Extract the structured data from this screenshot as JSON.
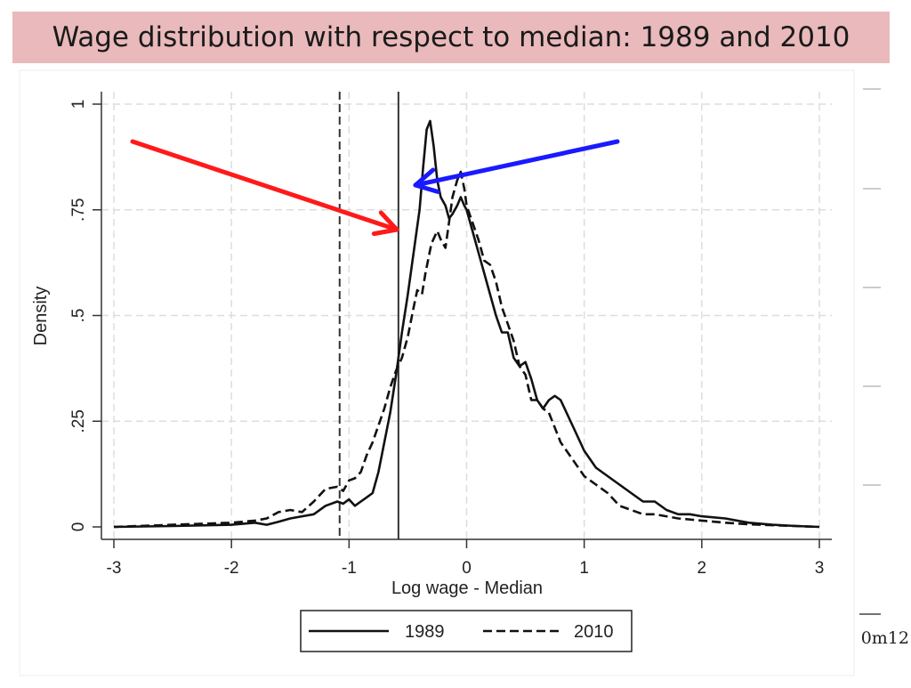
{
  "slide": {
    "title": "Wage distribution with respect to median: 1989 and 2010",
    "edge_fragment": "0m12"
  },
  "colors": {
    "title_background": "#e9b9bb",
    "red_arrow": "#ff1a1a",
    "blue_arrow": "#1a1aff",
    "line": "#111111",
    "grid": "#dddddd"
  },
  "chart_data": {
    "type": "line",
    "xlabel": "Log wage - Median",
    "ylabel": "Density",
    "xlim": [
      -3,
      3
    ],
    "ylim": [
      0,
      1
    ],
    "x_ticks": [
      -3,
      -2,
      -1,
      0,
      1,
      2,
      3
    ],
    "x_tick_labels": [
      "-3",
      "-2",
      "-1",
      "0",
      "1",
      "2",
      "3"
    ],
    "y_ticks": [
      0,
      0.25,
      0.5,
      0.75,
      1
    ],
    "y_tick_labels": [
      "0",
      ".25",
      ".5",
      ".75",
      "1"
    ],
    "grid": true,
    "legend_position": "bottom",
    "series": [
      {
        "name": "1989",
        "style": "solid",
        "x": [
          -3,
          -2.5,
          -2.0,
          -1.8,
          -1.7,
          -1.6,
          -1.5,
          -1.4,
          -1.3,
          -1.2,
          -1.1,
          -1.05,
          -1.0,
          -0.95,
          -0.9,
          -0.85,
          -0.8,
          -0.75,
          -0.7,
          -0.65,
          -0.6,
          -0.55,
          -0.5,
          -0.45,
          -0.4,
          -0.37,
          -0.34,
          -0.31,
          -0.28,
          -0.25,
          -0.22,
          -0.18,
          -0.15,
          -0.12,
          -0.08,
          -0.05,
          -0.02,
          0.0,
          0.05,
          0.1,
          0.15,
          0.2,
          0.25,
          0.3,
          0.35,
          0.4,
          0.45,
          0.5,
          0.55,
          0.6,
          0.65,
          0.7,
          0.75,
          0.8,
          0.9,
          1.0,
          1.1,
          1.2,
          1.3,
          1.4,
          1.5,
          1.6,
          1.7,
          1.8,
          1.9,
          2.0,
          2.2,
          2.4,
          2.6,
          2.8,
          3.0
        ],
        "y": [
          0.0,
          0.002,
          0.005,
          0.01,
          0.005,
          0.012,
          0.02,
          0.025,
          0.03,
          0.05,
          0.06,
          0.055,
          0.065,
          0.05,
          0.06,
          0.07,
          0.08,
          0.13,
          0.2,
          0.27,
          0.36,
          0.46,
          0.55,
          0.65,
          0.75,
          0.85,
          0.94,
          0.96,
          0.9,
          0.82,
          0.78,
          0.76,
          0.73,
          0.74,
          0.76,
          0.78,
          0.76,
          0.75,
          0.7,
          0.65,
          0.6,
          0.55,
          0.5,
          0.46,
          0.46,
          0.4,
          0.38,
          0.39,
          0.35,
          0.3,
          0.28,
          0.3,
          0.31,
          0.3,
          0.24,
          0.18,
          0.14,
          0.12,
          0.1,
          0.08,
          0.06,
          0.06,
          0.04,
          0.03,
          0.03,
          0.025,
          0.02,
          0.01,
          0.005,
          0.002,
          0.0
        ]
      },
      {
        "name": "2010",
        "style": "dashed",
        "x": [
          -3,
          -2.5,
          -2.0,
          -1.8,
          -1.7,
          -1.6,
          -1.5,
          -1.4,
          -1.3,
          -1.2,
          -1.1,
          -1.05,
          -1.0,
          -0.95,
          -0.9,
          -0.85,
          -0.8,
          -0.75,
          -0.7,
          -0.65,
          -0.6,
          -0.55,
          -0.5,
          -0.45,
          -0.42,
          -0.38,
          -0.35,
          -0.3,
          -0.25,
          -0.22,
          -0.18,
          -0.15,
          -0.12,
          -0.08,
          -0.05,
          -0.02,
          0.0,
          0.05,
          0.1,
          0.15,
          0.2,
          0.25,
          0.3,
          0.35,
          0.4,
          0.45,
          0.5,
          0.55,
          0.6,
          0.65,
          0.7,
          0.8,
          0.9,
          1.0,
          1.1,
          1.2,
          1.3,
          1.4,
          1.5,
          1.6,
          1.8,
          2.0,
          2.2,
          2.4,
          2.6,
          2.8,
          3.0
        ],
        "y": [
          0.0,
          0.005,
          0.01,
          0.015,
          0.02,
          0.035,
          0.04,
          0.035,
          0.06,
          0.09,
          0.095,
          0.085,
          0.11,
          0.115,
          0.13,
          0.17,
          0.2,
          0.24,
          0.28,
          0.33,
          0.37,
          0.4,
          0.45,
          0.52,
          0.56,
          0.55,
          0.6,
          0.67,
          0.7,
          0.68,
          0.66,
          0.72,
          0.78,
          0.82,
          0.84,
          0.8,
          0.76,
          0.72,
          0.68,
          0.63,
          0.62,
          0.58,
          0.52,
          0.48,
          0.44,
          0.38,
          0.36,
          0.3,
          0.3,
          0.28,
          0.27,
          0.2,
          0.16,
          0.12,
          0.1,
          0.08,
          0.05,
          0.04,
          0.03,
          0.03,
          0.02,
          0.015,
          0.01,
          0.006,
          0.004,
          0.002,
          0.0
        ]
      }
    ],
    "vertical_lines": [
      {
        "name": "median-line",
        "x": -0.58,
        "style": "solid"
      },
      {
        "name": "minimum-wage-line",
        "x": -1.08,
        "style": "dashed"
      }
    ]
  }
}
